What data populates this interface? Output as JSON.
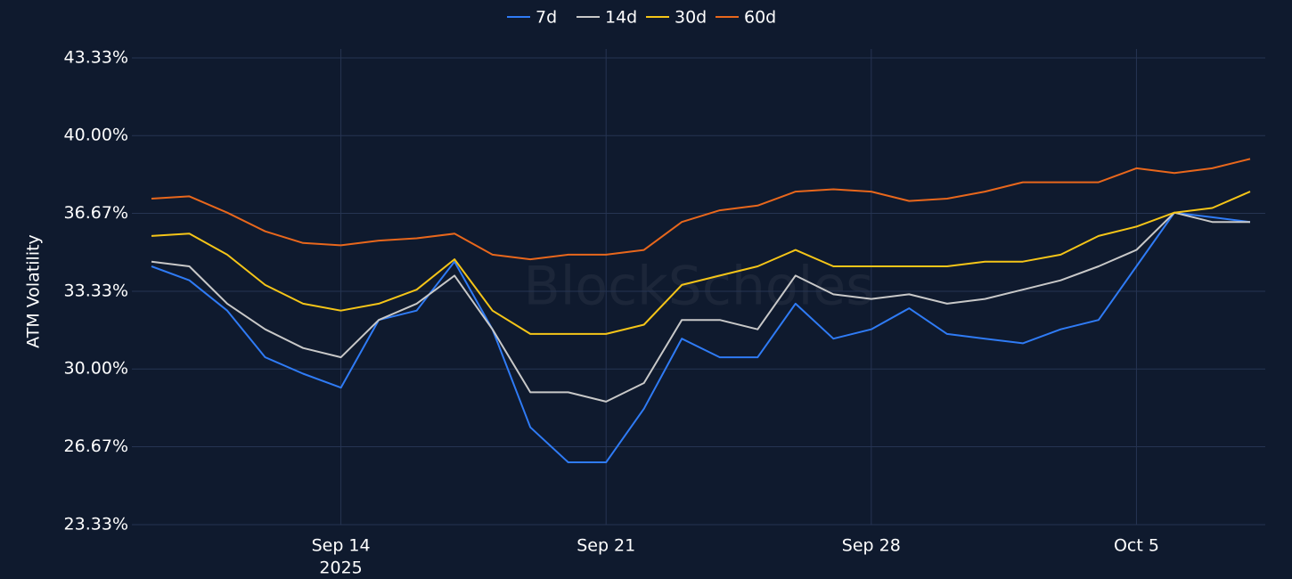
{
  "chart_data": {
    "type": "line",
    "y_axis_label": "ATM Volatility",
    "watermark": "BlockScholes",
    "x": [
      "2025-09-09",
      "2025-09-10",
      "2025-09-11",
      "2025-09-12",
      "2025-09-13",
      "2025-09-14",
      "2025-09-15",
      "2025-09-16",
      "2025-09-17",
      "2025-09-18",
      "2025-09-19",
      "2025-09-20",
      "2025-09-21",
      "2025-09-22",
      "2025-09-23",
      "2025-09-24",
      "2025-09-25",
      "2025-09-26",
      "2025-09-27",
      "2025-09-28",
      "2025-09-29",
      "2025-09-30",
      "2025-10-01",
      "2025-10-02",
      "2025-10-03",
      "2025-10-04",
      "2025-10-05",
      "2025-10-06",
      "2025-10-07",
      "2025-10-08"
    ],
    "series": [
      {
        "name": "7d",
        "color": "#2f7bf5",
        "values": [
          34.4,
          33.8,
          32.5,
          30.5,
          29.8,
          29.2,
          32.1,
          32.5,
          34.6,
          31.7,
          27.5,
          26.0,
          26.0,
          28.3,
          31.3,
          30.5,
          30.5,
          32.8,
          31.3,
          31.7,
          32.6,
          31.5,
          31.3,
          31.1,
          31.7,
          32.1,
          34.4,
          36.7,
          36.5,
          36.3
        ]
      },
      {
        "name": "14d",
        "color": "#c8c8c8",
        "values": [
          34.6,
          34.4,
          32.8,
          31.7,
          30.9,
          30.5,
          32.1,
          32.8,
          34.0,
          31.7,
          29.0,
          29.0,
          28.6,
          29.4,
          32.1,
          32.1,
          31.7,
          34.0,
          33.2,
          33.0,
          33.2,
          32.8,
          33.0,
          33.4,
          33.8,
          34.4,
          35.1,
          36.7,
          36.3,
          36.3
        ]
      },
      {
        "name": "30d",
        "color": "#f5c518",
        "values": [
          35.7,
          35.8,
          34.9,
          33.6,
          32.8,
          32.5,
          32.8,
          33.4,
          34.7,
          32.5,
          31.5,
          31.5,
          31.5,
          31.9,
          33.6,
          34.0,
          34.4,
          35.1,
          34.4,
          34.4,
          34.4,
          34.4,
          34.6,
          34.6,
          34.9,
          35.7,
          36.1,
          36.7,
          36.9,
          37.6
        ]
      },
      {
        "name": "60d",
        "color": "#e8671c",
        "values": [
          37.3,
          37.4,
          36.7,
          35.9,
          35.4,
          35.3,
          35.5,
          35.6,
          35.8,
          34.9,
          34.7,
          34.9,
          34.9,
          35.1,
          36.3,
          36.8,
          37.0,
          37.6,
          37.7,
          37.6,
          37.2,
          37.3,
          37.6,
          38.0,
          38.0,
          38.0,
          38.6,
          38.4,
          38.6,
          39.0
        ]
      }
    ],
    "xlim": [
      "2025-09-09",
      "2025-10-08"
    ],
    "xticks": [
      {
        "value": "2025-09-14",
        "label": "Sep 14"
      },
      {
        "value": "2025-09-21",
        "label": "Sep 21"
      },
      {
        "value": "2025-09-28",
        "label": "Sep 28"
      },
      {
        "value": "2025-10-05",
        "label": "Oct 5"
      }
    ],
    "x_year_label": "2025",
    "ylim": [
      23.33,
      43.33
    ],
    "yticks": [
      {
        "value": 23.33,
        "label": "23.33%"
      },
      {
        "value": 26.67,
        "label": "26.67%"
      },
      {
        "value": 30.0,
        "label": "30.00%"
      },
      {
        "value": 33.33,
        "label": "33.33%"
      },
      {
        "value": 36.67,
        "label": "36.67%"
      },
      {
        "value": 40.0,
        "label": "40.00%"
      },
      {
        "value": 43.33,
        "label": "43.33%"
      }
    ],
    "grid": true,
    "legend": "top"
  }
}
